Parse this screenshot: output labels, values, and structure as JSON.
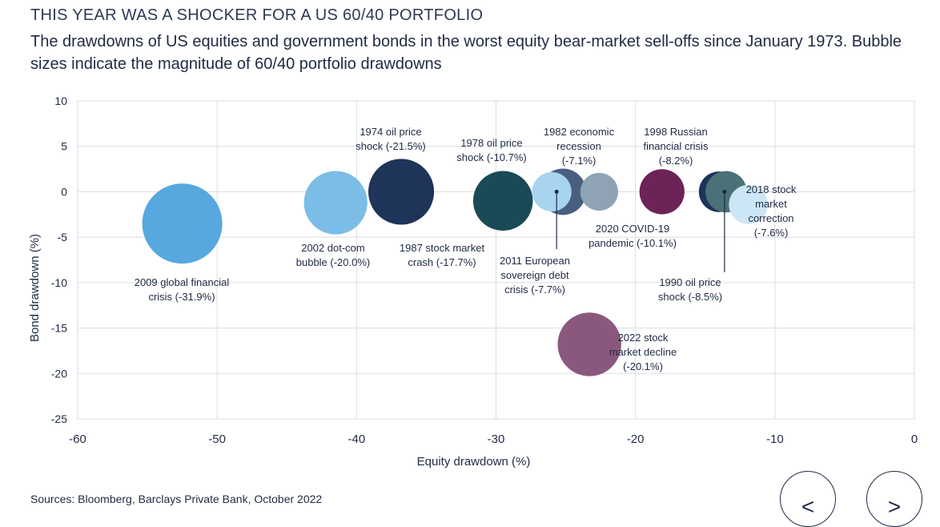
{
  "header": {
    "title": "THIS YEAR WAS A SHOCKER FOR A US 60/40 PORTFOLIO",
    "subtitle": "The drawdowns of US equities and government bonds in the worst equity bear-market sell-offs since January 1973. Bubble sizes indicate the magnitude of 60/40 portfolio drawdowns"
  },
  "footer": {
    "source": "Sources: Bloomberg, Barclays Private Bank, October 2022"
  },
  "nav": {
    "prev_label": "<",
    "next_label": ">"
  },
  "chart_data": {
    "type": "bubble",
    "xlabel": "Equity drawdown (%)",
    "ylabel": "Bond drawdown (%)",
    "xlim": [
      -60,
      0
    ],
    "ylim": [
      -25,
      10
    ],
    "xticks": [
      "-60",
      "-50",
      "-40",
      "-30",
      "-20",
      "-10",
      "0"
    ],
    "yticks": [
      "10",
      "5",
      "0",
      "-5",
      "-10",
      "-15",
      "-20",
      "-25"
    ],
    "grid": true,
    "points": [
      {
        "label_lines": [
          "2009 global financial",
          "crisis (-31.9%)"
        ],
        "x": -52.5,
        "y": -3.5,
        "size": 31.9,
        "color": "#56a8df"
      },
      {
        "label_lines": [
          "2002 dot-com",
          "bubble (-20.0%)"
        ],
        "x": -41.5,
        "y": -1.2,
        "size": 20.0,
        "color": "#7bbde6"
      },
      {
        "label_lines": [
          "1974 oil price",
          "shock (-21.5%)"
        ],
        "x": -36.8,
        "y": 0.0,
        "size": 21.5,
        "color": "#1e3458"
      },
      {
        "label_lines": [
          "1987 stock market",
          "crash (-17.7%)"
        ],
        "x": -29.5,
        "y": -1.0,
        "size": 17.7,
        "color": "#1a4a56"
      },
      {
        "label_lines": [
          "1978 oil price",
          "shock (-10.7%)"
        ],
        "x": -25.2,
        "y": 0.0,
        "size": 10.7,
        "color": "#4a5f80"
      },
      {
        "label_lines": [
          "2011 European",
          "sovereign debt",
          "crisis (-7.7%)"
        ],
        "x": -26.0,
        "y": 0.0,
        "size": 7.7,
        "color": "#a8d4ef"
      },
      {
        "label_lines": [
          "1982 economic",
          "recession",
          "(-7.1%)"
        ],
        "x": -22.6,
        "y": 0.0,
        "size": 7.1,
        "color": "#8fa3b5"
      },
      {
        "label_lines": [
          "2020 COVID-19",
          "pandemic (-10.1%)"
        ],
        "x": -18.1,
        "y": 0.0,
        "size": 10.1,
        "color": "#6c2356"
      },
      {
        "label_lines": [
          "1998 Russian",
          "financial crisis",
          "(-8.2%)"
        ],
        "x": -14.0,
        "y": 0.0,
        "size": 8.2,
        "color": "#1e3458"
      },
      {
        "label_lines": [
          "1990 oil price",
          "shock (-8.5%)"
        ],
        "x": -13.5,
        "y": 0.0,
        "size": 8.5,
        "color": "#4b7078"
      },
      {
        "label_lines": [
          "2018 stock",
          "market",
          "correction",
          "(-7.6%)"
        ],
        "x": -11.9,
        "y": -1.4,
        "size": 7.6,
        "color": "#cde6f5"
      },
      {
        "label_lines": [
          "2022 stock",
          "market decline",
          "(-20.1%)"
        ],
        "x": -23.3,
        "y": -16.8,
        "size": 20.1,
        "color": "#8b587d"
      }
    ]
  }
}
